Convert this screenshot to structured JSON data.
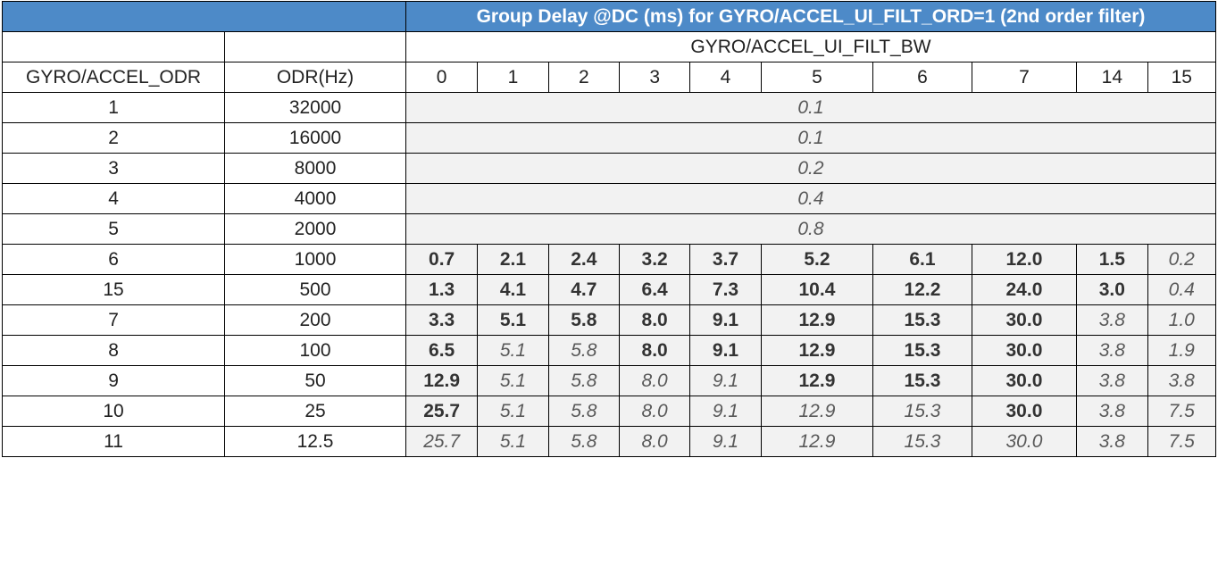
{
  "title": "Group Delay @DC (ms) for GYRO/ACCEL_UI_FILT_ORD=1 (2nd order filter)",
  "colors": {
    "header_fill": "#4d8ac8",
    "data_fill": "#f2f2f2",
    "border": "#000000"
  },
  "bw_group_label": "GYRO/ACCEL_UI_FILT_BW",
  "col_headers": {
    "odr": "GYRO/ACCEL_ODR",
    "odr_hz": "ODR(Hz)"
  },
  "bw_values": [
    "0",
    "1",
    "2",
    "3",
    "4",
    "5",
    "6",
    "7",
    "14",
    "15"
  ],
  "merged_rows": [
    {
      "odr": "1",
      "hz": "32000",
      "value": "0.1"
    },
    {
      "odr": "2",
      "hz": "16000",
      "value": "0.1"
    },
    {
      "odr": "3",
      "hz": "8000",
      "value": "0.2"
    },
    {
      "odr": "4",
      "hz": "4000",
      "value": "0.4"
    },
    {
      "odr": "5",
      "hz": "2000",
      "value": "0.8"
    }
  ],
  "value_rows": [
    {
      "odr": "6",
      "hz": "1000",
      "values": [
        "0.7",
        "2.1",
        "2.4",
        "3.2",
        "3.7",
        "5.2",
        "6.1",
        "12.0",
        "1.5",
        "0.2"
      ],
      "bold": [
        true,
        true,
        true,
        true,
        true,
        true,
        true,
        true,
        true,
        false
      ]
    },
    {
      "odr": "15",
      "hz": "500",
      "values": [
        "1.3",
        "4.1",
        "4.7",
        "6.4",
        "7.3",
        "10.4",
        "12.2",
        "24.0",
        "3.0",
        "0.4"
      ],
      "bold": [
        true,
        true,
        true,
        true,
        true,
        true,
        true,
        true,
        true,
        false
      ]
    },
    {
      "odr": "7",
      "hz": "200",
      "values": [
        "3.3",
        "5.1",
        "5.8",
        "8.0",
        "9.1",
        "12.9",
        "15.3",
        "30.0",
        "3.8",
        "1.0"
      ],
      "bold": [
        true,
        true,
        true,
        true,
        true,
        true,
        true,
        true,
        false,
        false
      ]
    },
    {
      "odr": "8",
      "hz": "100",
      "values": [
        "6.5",
        "5.1",
        "5.8",
        "8.0",
        "9.1",
        "12.9",
        "15.3",
        "30.0",
        "3.8",
        "1.9"
      ],
      "bold": [
        true,
        false,
        false,
        true,
        true,
        true,
        true,
        true,
        false,
        false
      ]
    },
    {
      "odr": "9",
      "hz": "50",
      "values": [
        "12.9",
        "5.1",
        "5.8",
        "8.0",
        "9.1",
        "12.9",
        "15.3",
        "30.0",
        "3.8",
        "3.8"
      ],
      "bold": [
        true,
        false,
        false,
        false,
        false,
        true,
        true,
        true,
        false,
        false
      ]
    },
    {
      "odr": "10",
      "hz": "25",
      "values": [
        "25.7",
        "5.1",
        "5.8",
        "8.0",
        "9.1",
        "12.9",
        "15.3",
        "30.0",
        "3.8",
        "7.5"
      ],
      "bold": [
        true,
        false,
        false,
        false,
        false,
        false,
        false,
        true,
        false,
        false
      ]
    },
    {
      "odr": "11",
      "hz": "12.5",
      "values": [
        "25.7",
        "5.1",
        "5.8",
        "8.0",
        "9.1",
        "12.9",
        "15.3",
        "30.0",
        "3.8",
        "7.5"
      ],
      "bold": [
        false,
        false,
        false,
        false,
        false,
        false,
        false,
        false,
        false,
        false
      ]
    }
  ]
}
